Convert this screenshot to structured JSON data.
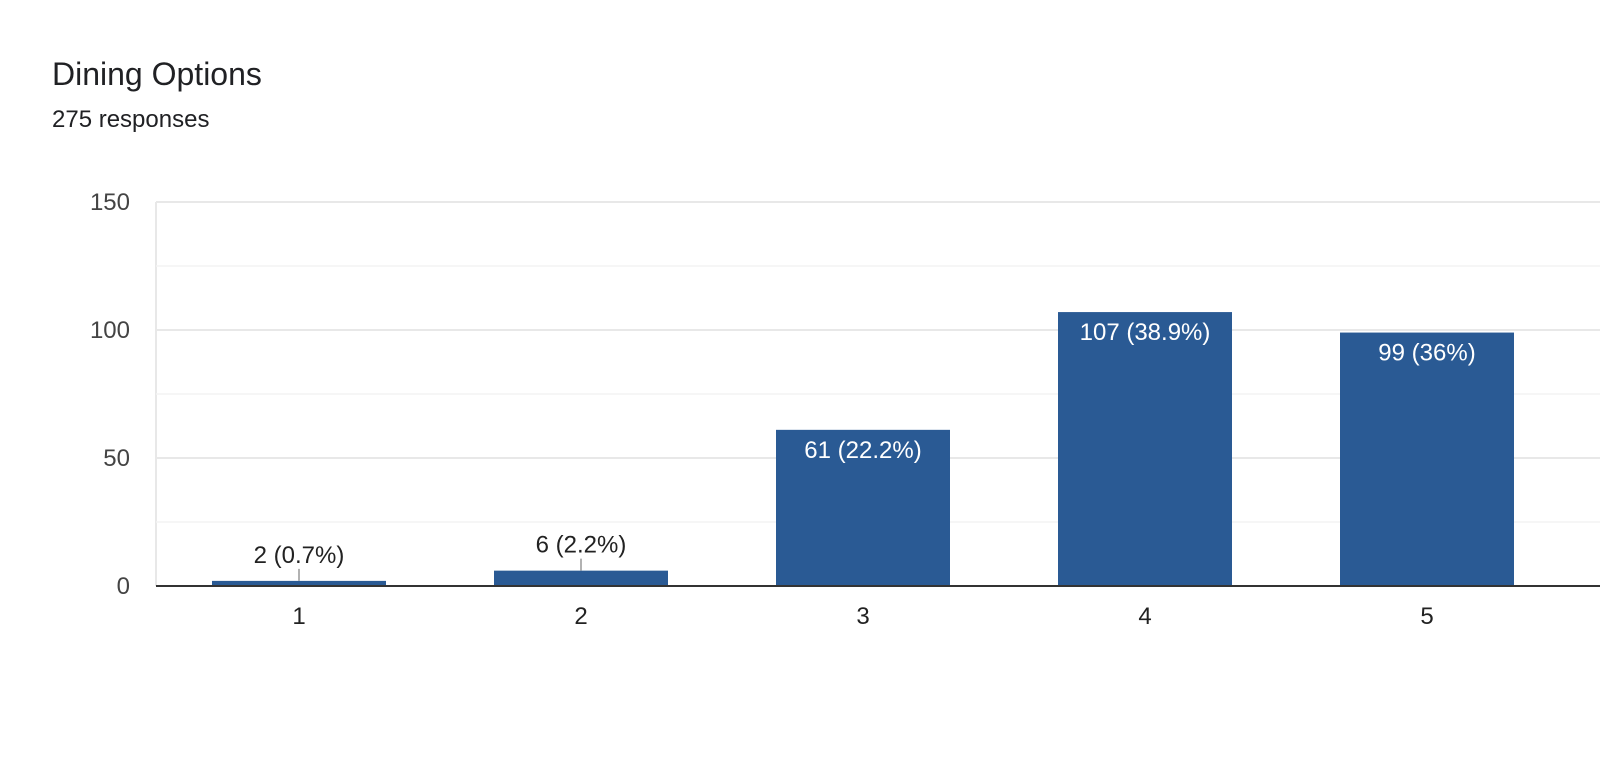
{
  "header": {
    "title": "Dining Options",
    "subtitle": "275 responses"
  },
  "colors": {
    "bar": "#2a5a94",
    "grid": "#e8e8e8",
    "minor_grid": "#f3f3f3",
    "baseline": "#333333",
    "inside_label": "#ffffff",
    "outside_label": "#222222",
    "leader": "#999999"
  },
  "chart_data": {
    "type": "bar",
    "title": "Dining Options",
    "subtitle": "275 responses",
    "xlabel": "",
    "ylabel": "",
    "categories": [
      "1",
      "2",
      "3",
      "4",
      "5"
    ],
    "values": [
      2,
      6,
      61,
      107,
      99
    ],
    "data_labels": [
      "2 (0.7%)",
      "6 (2.2%)",
      "61 (22.2%)",
      "107 (38.9%)",
      "99 (36%)"
    ],
    "ylim": [
      0,
      150
    ],
    "yticks": [
      0,
      50,
      100,
      150
    ],
    "grid": true,
    "legend": "none"
  }
}
